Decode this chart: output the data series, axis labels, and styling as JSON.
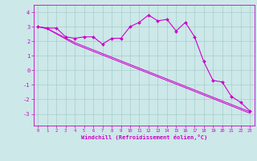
{
  "xlabel": "Windchill (Refroidissement éolien,°C)",
  "bg_color": "#cce8e8",
  "line_color": "#cc00cc",
  "grid_color": "#aacccc",
  "x_data": [
    0,
    1,
    2,
    3,
    4,
    5,
    6,
    7,
    8,
    9,
    10,
    11,
    12,
    13,
    14,
    15,
    16,
    17,
    18,
    19,
    20,
    21,
    22,
    23
  ],
  "line1_y": [
    3.0,
    2.9,
    2.9,
    2.3,
    2.2,
    2.3,
    2.3,
    1.8,
    2.2,
    2.2,
    3.0,
    3.3,
    3.8,
    3.4,
    3.5,
    2.7,
    3.3,
    2.3,
    0.6,
    -0.7,
    -0.8,
    -1.8,
    -2.2,
    -2.8
  ],
  "line2_y": [
    3.0,
    2.85,
    2.5,
    2.15,
    1.8,
    1.55,
    1.3,
    1.05,
    0.8,
    0.55,
    0.3,
    0.05,
    -0.2,
    -0.45,
    -0.7,
    -0.95,
    -1.2,
    -1.45,
    -1.7,
    -1.95,
    -2.2,
    -2.45,
    -2.7,
    -2.95
  ],
  "line3_y": [
    3.0,
    2.87,
    2.55,
    2.22,
    1.9,
    1.65,
    1.4,
    1.15,
    0.9,
    0.65,
    0.4,
    0.15,
    -0.1,
    -0.35,
    -0.6,
    -0.85,
    -1.1,
    -1.35,
    -1.6,
    -1.85,
    -2.1,
    -2.35,
    -2.6,
    -2.85
  ],
  "ylim": [
    -3.8,
    4.5
  ],
  "xlim": [
    -0.5,
    23.5
  ],
  "yticks": [
    -3,
    -2,
    -1,
    0,
    1,
    2,
    3,
    4
  ]
}
